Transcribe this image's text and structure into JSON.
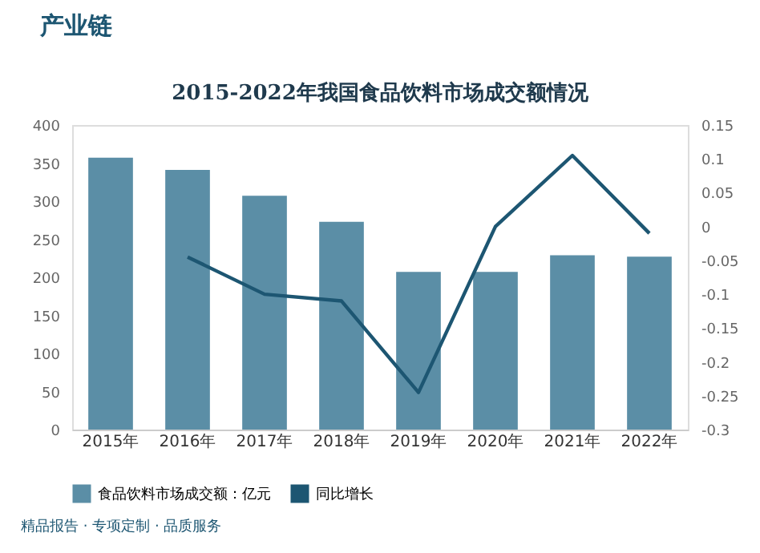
{
  "chart_data": {
    "type": "bar",
    "title": "2015-2022年我国食品饮料市场成交额情况",
    "annotations": [
      "产业链",
      "精品报告 · 专项定制 · 品质服务"
    ],
    "categories": [
      "2015年",
      "2016年",
      "2017年",
      "2018年",
      "2019年",
      "2020年",
      "2021年",
      "2022年"
    ],
    "series": [
      {
        "name": "食品饮料市场成交额：亿元",
        "color": "#5b8ea6",
        "values": [
          357,
          341,
          307,
          273,
          207,
          207,
          229,
          227
        ]
      },
      {
        "name": "同比增长",
        "type": "line",
        "axis": "y2",
        "color": "#1d5672",
        "values": [
          null,
          -0.045,
          -0.1,
          -0.11,
          -0.245,
          0.0,
          0.105,
          -0.01
        ]
      }
    ],
    "ylim": [
      0,
      400
    ],
    "yticks": [
      0,
      50,
      100,
      150,
      200,
      250,
      300,
      350,
      400
    ],
    "y2lim": [
      -0.3,
      0.15
    ],
    "y2ticks": [
      -0.3,
      -0.25,
      -0.2,
      -0.15,
      -0.1,
      -0.05,
      0,
      0.05,
      0.1,
      0.15
    ],
    "grid": false,
    "legend": "bottom",
    "line_style": "solid",
    "marker": "none"
  }
}
